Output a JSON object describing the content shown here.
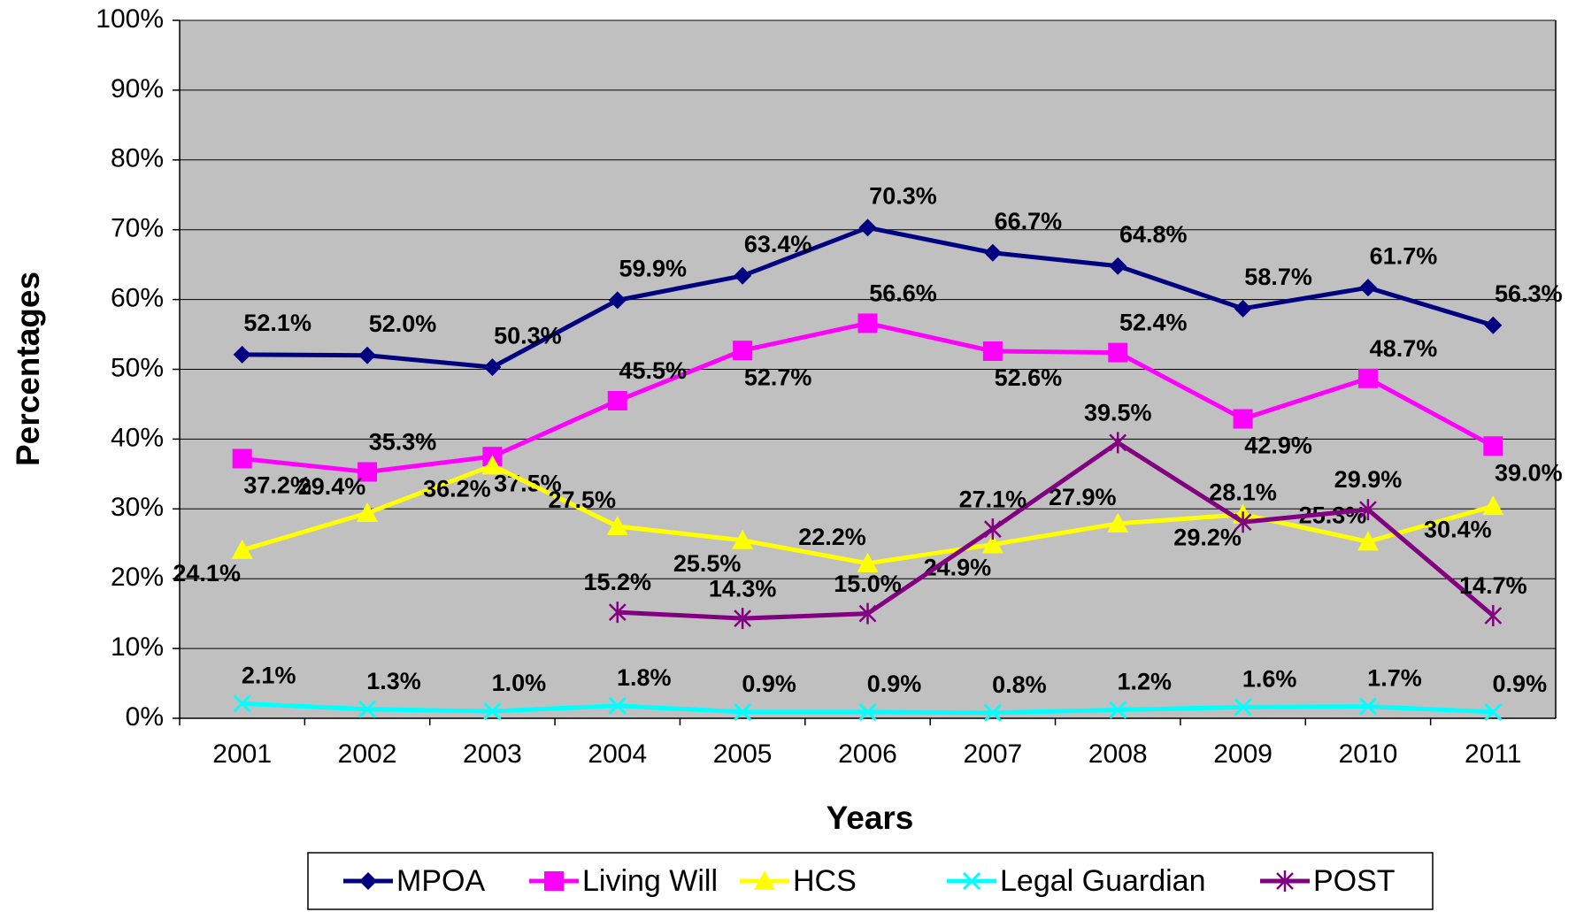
{
  "chart_data": {
    "type": "line",
    "x_label": "Years",
    "y_label": "Percentages",
    "categories": [
      "2001",
      "2002",
      "2003",
      "2004",
      "2005",
      "2006",
      "2007",
      "2008",
      "2009",
      "2010",
      "2011"
    ],
    "ylim": [
      0,
      100
    ],
    "yticks": [
      {
        "value": 0,
        "label": "0%"
      },
      {
        "value": 10,
        "label": "10%"
      },
      {
        "value": 20,
        "label": "20%"
      },
      {
        "value": 30,
        "label": "30%"
      },
      {
        "value": 40,
        "label": "40%"
      },
      {
        "value": 50,
        "label": "50%"
      },
      {
        "value": 60,
        "label": "60%"
      },
      {
        "value": 70,
        "label": "70%"
      },
      {
        "value": 80,
        "label": "80%"
      },
      {
        "value": 90,
        "label": "90%"
      },
      {
        "value": 100,
        "label": "100%"
      }
    ],
    "grid": true,
    "legend": "bottom",
    "series": [
      {
        "name": "MPOA",
        "color": "#000080",
        "marker": "diamond",
        "values": [
          52.1,
          52.0,
          50.3,
          59.9,
          63.4,
          70.3,
          66.7,
          64.8,
          58.7,
          61.7,
          56.3
        ],
        "value_labels": [
          "52.1%",
          "52.0%",
          "50.3%",
          "59.9%",
          "63.4%",
          "70.3%",
          "66.7%",
          "64.8%",
          "58.7%",
          "61.7%",
          "56.3%"
        ]
      },
      {
        "name": "Living Will",
        "color": "#ff00ff",
        "marker": "square",
        "values": [
          37.2,
          35.3,
          37.5,
          45.5,
          52.7,
          56.6,
          52.6,
          52.4,
          42.9,
          48.7,
          39.0
        ],
        "value_labels": [
          "37.2%",
          "35.3%",
          "37.5%",
          "45.5%",
          "52.7%",
          "56.6%",
          "52.6%",
          "52.4%",
          "42.9%",
          "48.7%",
          "39.0%"
        ]
      },
      {
        "name": "HCS",
        "color": "#ffff00",
        "marker": "triangle",
        "values": [
          24.1,
          29.4,
          36.2,
          27.5,
          25.5,
          22.2,
          24.9,
          27.9,
          29.2,
          25.3,
          30.4
        ],
        "value_labels": [
          "24.1%",
          "29.4%",
          "36.2%",
          "27.5%",
          "25.5%",
          "22.2%",
          "24.9%",
          "27.9%",
          "29.2%",
          "25.3%",
          "30.4%"
        ]
      },
      {
        "name": "Legal Guardian",
        "color": "#00ffff",
        "marker": "x",
        "values": [
          2.1,
          1.3,
          1.0,
          1.8,
          0.9,
          0.9,
          0.8,
          1.2,
          1.6,
          1.7,
          0.9
        ],
        "value_labels": [
          "2.1%",
          "1.3%",
          "1.0%",
          "1.8%",
          "0.9%",
          "0.9%",
          "0.8%",
          "1.2%",
          "1.6%",
          "1.7%",
          "0.9%"
        ]
      },
      {
        "name": "POST",
        "color": "#800080",
        "marker": "star",
        "values": [
          null,
          null,
          null,
          15.2,
          14.3,
          15.0,
          27.1,
          39.5,
          28.1,
          29.9,
          14.7
        ],
        "value_labels": [
          null,
          null,
          null,
          "15.2%",
          "14.3%",
          "15.0%",
          "27.1%",
          "39.5%",
          "28.1%",
          "29.9%",
          "14.7%"
        ]
      }
    ]
  }
}
